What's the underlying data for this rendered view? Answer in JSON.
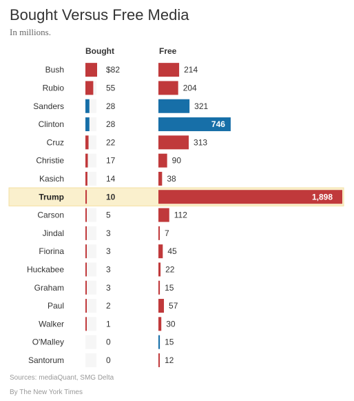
{
  "title": "Bought Versus Free Media",
  "subtitle": "In millions.",
  "source": "Sources: mediaQuant, SMG Delta",
  "credit": "By The New York Times",
  "colors": {
    "republican": "#c0393b",
    "democrat": "#176fa8",
    "highlight_bg": "#faf0cd",
    "highlight_border": "#f3dfa1",
    "bought_bg": "#f6f6f6"
  },
  "chart_data": {
    "type": "bar",
    "title": "Bought Versus Free Media",
    "subtitle": "In millions.",
    "units": "millions of dollars",
    "categories": [
      "Bush",
      "Rubio",
      "Sanders",
      "Clinton",
      "Cruz",
      "Christie",
      "Kasich",
      "Trump",
      "Carson",
      "Jindal",
      "Fiorina",
      "Huckabee",
      "Graham",
      "Paul",
      "Walker",
      "O'Malley",
      "Santorum"
    ],
    "party": [
      "R",
      "R",
      "D",
      "D",
      "R",
      "R",
      "R",
      "R",
      "R",
      "R",
      "R",
      "R",
      "R",
      "R",
      "R",
      "D",
      "R"
    ],
    "highlighted": "Trump",
    "series": [
      {
        "name": "Bought",
        "values": [
          82,
          55,
          28,
          28,
          22,
          17,
          14,
          10,
          5,
          3,
          3,
          3,
          3,
          2,
          1,
          0,
          0
        ],
        "labels": [
          "$82",
          "55",
          "28",
          "28",
          "22",
          "17",
          "14",
          "10",
          "5",
          "3",
          "3",
          "3",
          "3",
          "2",
          "1",
          "0",
          "0"
        ]
      },
      {
        "name": "Free",
        "values": [
          214,
          204,
          321,
          746,
          313,
          90,
          38,
          1898,
          112,
          7,
          45,
          22,
          15,
          57,
          30,
          15,
          12
        ],
        "labels": [
          "214",
          "204",
          "321",
          "746",
          "313",
          "90",
          "38",
          "1,898",
          "112",
          "7",
          "45",
          "22",
          "15",
          "57",
          "30",
          "15",
          "12"
        ]
      }
    ],
    "grid": false,
    "legend": "none"
  }
}
